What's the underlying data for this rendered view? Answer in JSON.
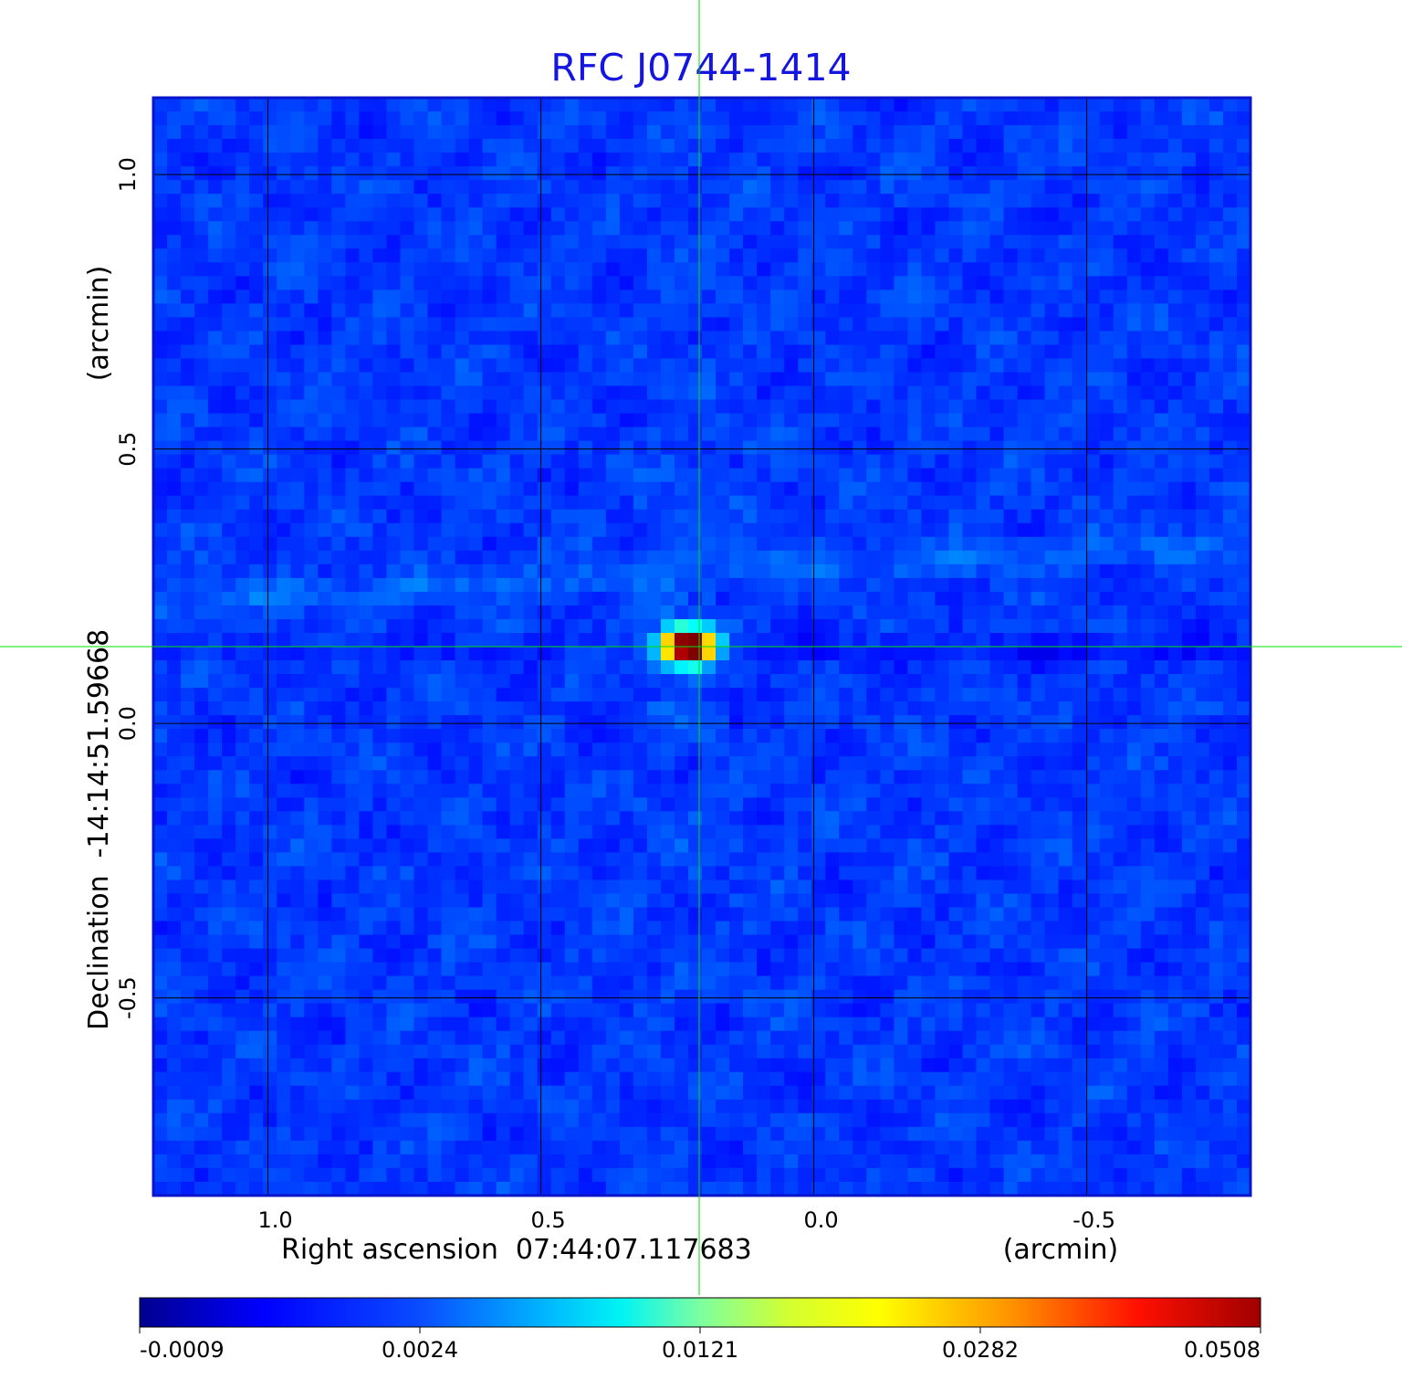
{
  "chart_data": {
    "type": "heatmap",
    "title": "RFC J0744-1414",
    "xlabel": "Right ascension  07:44:07.117683",
    "xunit": "(arcmin)",
    "ylabel": "Declination  -14:14:51.59668",
    "yunit": "(arcmin)",
    "xlim": [
      1.21,
      -0.8
    ],
    "ylim": [
      -0.86,
      1.14
    ],
    "x_ticks": [
      1.0,
      0.5,
      0.0,
      -0.5
    ],
    "x_tick_labels": [
      "1.0",
      "0.5",
      "0.0",
      "-0.5"
    ],
    "y_ticks": [
      1.0,
      0.5,
      0.0,
      -0.5
    ],
    "y_tick_labels": [
      "1.0",
      "0.5",
      "0.0",
      "-0.5"
    ],
    "grid": true,
    "crosshair": {
      "x": 0.21,
      "y": 0.14,
      "color": "#00e000"
    },
    "source_peak": {
      "x": 0.21,
      "y": 0.14,
      "value": 0.0508
    },
    "colormap": "jet",
    "colorbar": {
      "ticks": [
        -0.0009,
        0.0024,
        0.0121,
        0.0282,
        0.0508
      ],
      "tick_labels": [
        "-0.0009",
        "0.0024",
        "0.0121",
        "0.0282",
        "0.0508"
      ]
    }
  }
}
